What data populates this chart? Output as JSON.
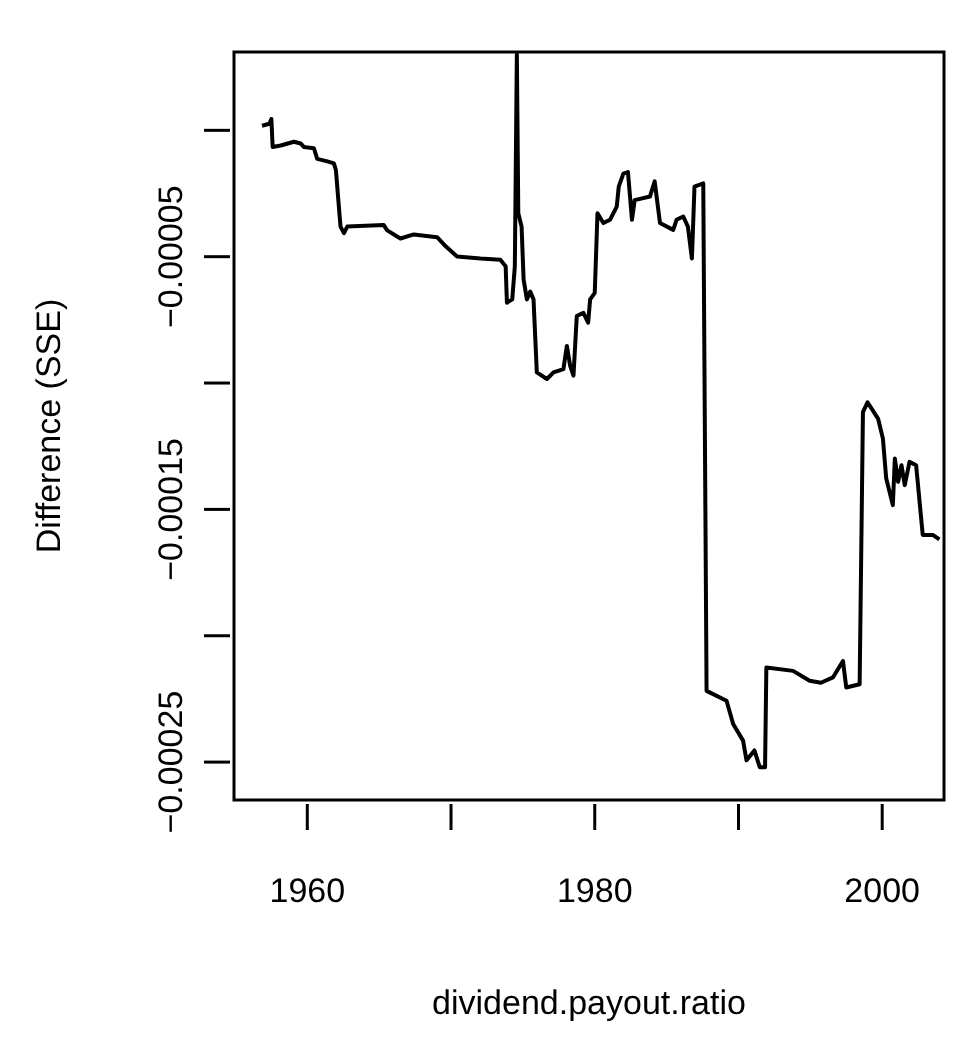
{
  "chart_data": {
    "type": "line",
    "xlabel": "dividend.payout.ratio",
    "ylabel": "Difference (SSE)",
    "xlim": [
      1954.9,
      2004.3
    ],
    "ylim": [
      -0.000265,
      3.1e-05
    ],
    "xticks": [
      1960,
      {
        "value": 1970,
        "label": null
      },
      1980,
      {
        "value": 1990,
        "label": null
      },
      2000
    ],
    "yticks": [
      {
        "value": 0,
        "label": null
      },
      {
        "value": -5e-05,
        "label": "−0.00005"
      },
      {
        "value": -0.0001,
        "label": null
      },
      {
        "value": -0.00015,
        "label": "−0.00015"
      },
      {
        "value": -0.0002,
        "label": null
      },
      {
        "value": -0.00025,
        "label": "−0.00025"
      }
    ],
    "marker": "none",
    "line_style": "solid",
    "series": [
      {
        "color": "#000000",
        "x": [
          1956.85,
          1957.36,
          1957.5,
          1957.59,
          1958.15,
          1959.07,
          1959.54,
          1959.77,
          1960.46,
          1960.69,
          1961.39,
          1961.85,
          1961.99,
          1962.31,
          1962.55,
          1962.78,
          1965.32,
          1965.56,
          1966.48,
          1967.41,
          1969.03,
          1969.63,
          1970.42,
          1972.04,
          1973.43,
          1973.8,
          1973.89,
          1974.26,
          1974.44,
          1974.58,
          1974.68,
          1974.91,
          1975.05,
          1975.28,
          1975.51,
          1975.74,
          1975.97,
          1976.67,
          1977.13,
          1977.82,
          1978.06,
          1978.29,
          1978.52,
          1978.75,
          1979.21,
          1979.54,
          1979.68,
          1980.0,
          1980.19,
          1980.6,
          1981.06,
          1981.53,
          1981.67,
          1981.99,
          1982.31,
          1982.59,
          1982.78,
          1983.84,
          1984.17,
          1984.54,
          1985.46,
          1985.69,
          1986.16,
          1986.48,
          1986.76,
          1986.94,
          1987.55,
          1987.78,
          1989.17,
          1989.63,
          1990.32,
          1990.56,
          1991.11,
          1991.48,
          1991.85,
          1991.94,
          1993.8,
          1994.95,
          1995.74,
          1996.57,
          1997.27,
          1997.5,
          1998.43,
          1998.66,
          1998.98,
          1999.72,
          2000.05,
          2000.28,
          2000.74,
          2000.88,
          2001.11,
          2001.34,
          2001.57,
          2001.9,
          2002.36,
          2002.82,
          2003.52,
          2003.98
        ],
        "values": [
          1.8e-06,
          2.6e-06,
          4.5e-06,
          -6.6e-06,
          -6e-06,
          -4.5e-06,
          -5.2e-06,
          -6.6e-06,
          -7.1e-06,
          -1.13e-05,
          -1.23e-05,
          -1.31e-05,
          -1.57e-05,
          -3.81e-05,
          -4.07e-05,
          -3.81e-05,
          -3.75e-05,
          -3.96e-05,
          -4.28e-05,
          -4.12e-05,
          -4.23e-05,
          -4.59e-05,
          -4.99e-05,
          -5.07e-05,
          -5.12e-05,
          -5.38e-05,
          -6.82e-05,
          -6.69e-05,
          -5.38e-05,
          3e-05,
          -3.28e-05,
          -3.81e-05,
          -5.91e-05,
          -6.69e-05,
          -6.38e-05,
          -6.69e-05,
          -9.58e-05,
          -9.84e-05,
          -9.58e-05,
          -9.45e-05,
          -8.53e-05,
          -9.32e-05,
          -9.71e-05,
          -7.35e-05,
          -7.22e-05,
          -7.61e-05,
          -6.69e-05,
          -6.43e-05,
          -3.28e-05,
          -3.67e-05,
          -3.54e-05,
          -3.02e-05,
          -2.23e-05,
          -1.71e-05,
          -1.65e-05,
          -3.54e-05,
          -2.76e-05,
          -2.62e-05,
          -2.02e-05,
          -3.67e-05,
          -3.94e-05,
          -3.54e-05,
          -3.41e-05,
          -3.81e-05,
          -5.07e-05,
          -2.23e-05,
          -2.1e-05,
          -0.0002218,
          -0.0002257,
          -0.0002349,
          -0.0002415,
          -0.0002493,
          -0.0002454,
          -0.000252,
          -0.000252,
          -0.0002126,
          -0.0002139,
          -0.0002178,
          -0.0002186,
          -0.0002165,
          -0.00021,
          -0.0002205,
          -0.0002192,
          -0.0001115,
          -0.0001076,
          -0.0001142,
          -0.000122,
          -0.0001378,
          -0.0001483,
          -0.0001299,
          -0.0001391,
          -0.0001325,
          -0.0001404,
          -0.0001312,
          -0.0001325,
          -0.0001601,
          -0.0001601,
          -0.0001619
        ]
      }
    ]
  }
}
